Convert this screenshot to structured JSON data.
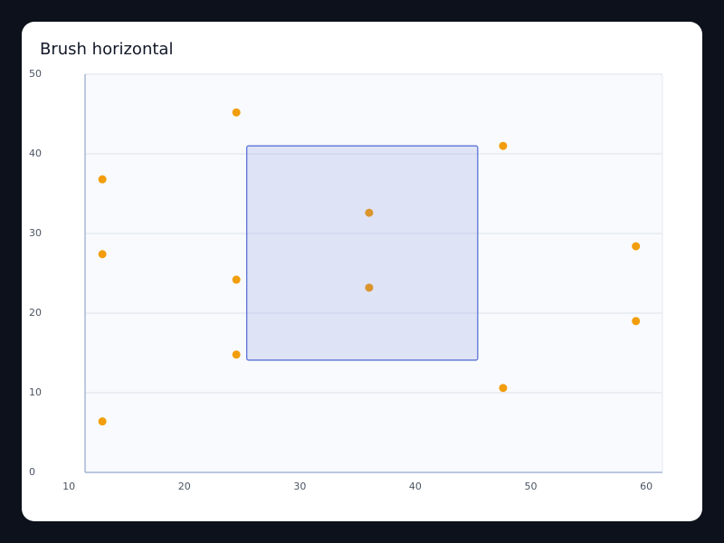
{
  "chart_data": {
    "type": "scatter",
    "title": "Brush horizontal",
    "xlim": [
      11.4,
      61.4
    ],
    "ylim": [
      0,
      50
    ],
    "xticks": [
      10,
      20,
      30,
      40,
      50,
      60
    ],
    "yticks": [
      0,
      10,
      20,
      30,
      40,
      50
    ],
    "grid": true,
    "series": [
      {
        "color": "#f29d0c",
        "x": [
          12.9,
          12.9,
          12.9,
          24.5,
          24.5,
          24.5,
          36.0,
          36.0,
          47.6,
          47.6,
          59.1,
          59.1
        ],
        "values": [
          36.8,
          27.4,
          6.4,
          45.2,
          24.2,
          14.8,
          32.6,
          23.2,
          41.0,
          10.6,
          28.4,
          19.0
        ]
      }
    ],
    "brush": {
      "x": [
        25.4,
        45.4
      ],
      "y": [
        14.1,
        41.0
      ],
      "color": "#5b73d6"
    }
  }
}
